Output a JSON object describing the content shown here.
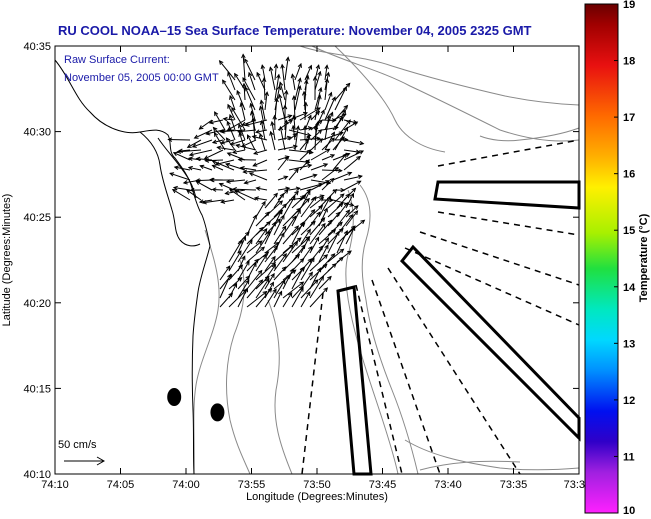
{
  "chart_data": {
    "type": "map",
    "title": "RU COOL  NOAA–15  Sea Surface Temperature:  November 04, 2005 2325 GMT",
    "annotation_lines": [
      "Raw Surface Current:",
      "November 05, 2005 00:00 GMT"
    ],
    "xlabel": "Longitude (Degrees:Minutes)",
    "ylabel": "Latitude (Degrees:Minutes)",
    "x_ticks": [
      "74:10",
      "74:05",
      "74:00",
      "73:55",
      "73:50",
      "73:45",
      "73:40",
      "73:35",
      "73:3"
    ],
    "y_ticks": [
      "40:35",
      "40:30",
      "40:25",
      "40:20",
      "40:15",
      "40:10"
    ],
    "xlim": [
      "74:10",
      "73:30"
    ],
    "ylim": [
      "40:10",
      "40:35"
    ],
    "scale_label": "50 cm/s",
    "colorbar": {
      "label": "Temperature (°C)",
      "ticks": [
        "19",
        "18",
        "17",
        "16",
        "15",
        "14",
        "13",
        "12",
        "11",
        "10"
      ],
      "range": [
        10,
        19
      ]
    },
    "markers": [
      {
        "lon_min": -0.9,
        "lat_min": 14.5
      },
      {
        "lon_min": 2.4,
        "lat_min": 13.6
      }
    ]
  },
  "colors": {
    "title": "#1a1aa8",
    "land_outline": "#000000",
    "contour": "#888888",
    "arrow": "#000000"
  }
}
